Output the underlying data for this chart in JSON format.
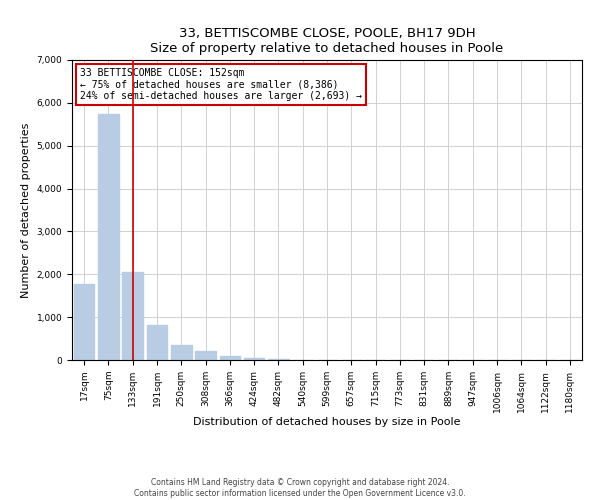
{
  "title": "33, BETTISCOMBE CLOSE, POOLE, BH17 9DH",
  "subtitle": "Size of property relative to detached houses in Poole",
  "xlabel": "Distribution of detached houses by size in Poole",
  "ylabel": "Number of detached properties",
  "bar_labels": [
    "17sqm",
    "75sqm",
    "133sqm",
    "191sqm",
    "250sqm",
    "308sqm",
    "366sqm",
    "424sqm",
    "482sqm",
    "540sqm",
    "599sqm",
    "657sqm",
    "715sqm",
    "773sqm",
    "831sqm",
    "889sqm",
    "947sqm",
    "1006sqm",
    "1064sqm",
    "1122sqm",
    "1180sqm"
  ],
  "bar_values": [
    1780,
    5750,
    2050,
    820,
    360,
    220,
    100,
    50,
    20,
    5,
    2,
    0,
    0,
    0,
    0,
    0,
    0,
    0,
    0,
    0,
    0
  ],
  "bar_color": "#b8cce4",
  "bar_edge_color": "#b8cce4",
  "grid_color": "#d0d0d0",
  "ylim": [
    0,
    7000
  ],
  "yticks": [
    0,
    1000,
    2000,
    3000,
    4000,
    5000,
    6000,
    7000
  ],
  "vline_x": 2,
  "vline_color": "#cc0000",
  "annotation_title": "33 BETTISCOMBE CLOSE: 152sqm",
  "annotation_line1": "← 75% of detached houses are smaller (8,386)",
  "annotation_line2": "24% of semi-detached houses are larger (2,693) →",
  "annotation_box_color": "#cc0000",
  "title_fontsize": 9.5,
  "axis_label_fontsize": 8,
  "tick_fontsize": 6.5,
  "annotation_fontsize": 7,
  "footer1": "Contains HM Land Registry data © Crown copyright and database right 2024.",
  "footer2": "Contains public sector information licensed under the Open Government Licence v3.0.",
  "footer_fontsize": 5.5
}
